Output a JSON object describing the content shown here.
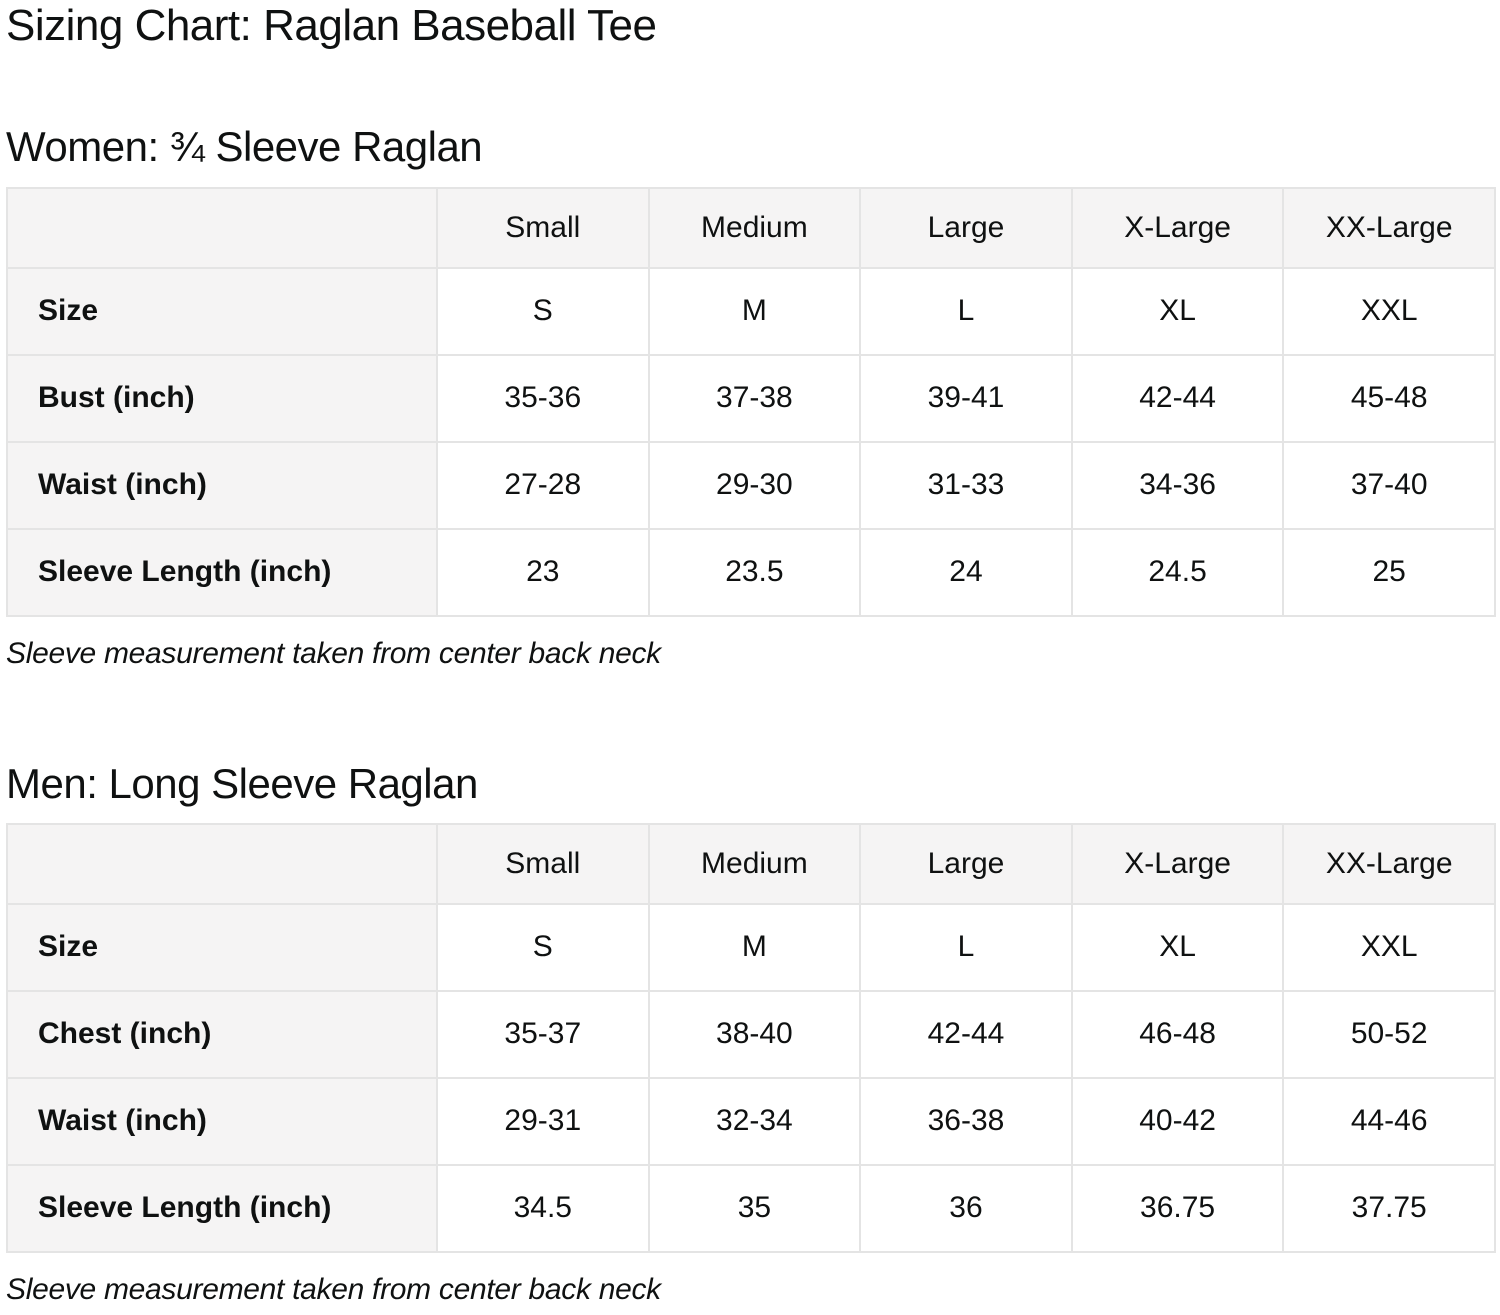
{
  "page": {
    "title": "Sizing Chart: Raglan Baseball Tee"
  },
  "colors": {
    "text": "#0f1111",
    "cell_header_bg": "#f5f4f4",
    "cell_data_bg": "#ffffff",
    "border": "#e4e4e4"
  },
  "sections": [
    {
      "id": "women",
      "title": "Women: ¾ Sleeve Raglan",
      "note": "Sleeve measurement taken from center back neck",
      "table": {
        "corner_label": "",
        "columns": [
          "Small",
          "Medium",
          "Large",
          "X-Large",
          "XX-Large"
        ],
        "rows": [
          {
            "label": "Size",
            "values": [
              "S",
              "M",
              "L",
              "XL",
              "XXL"
            ]
          },
          {
            "label": "Bust (inch)",
            "values": [
              "35-36",
              "37-38",
              "39-41",
              "42-44",
              "45-48"
            ]
          },
          {
            "label": "Waist (inch)",
            "values": [
              "27-28",
              "29-30",
              "31-33",
              "34-36",
              "37-40"
            ]
          },
          {
            "label": "Sleeve Length (inch)",
            "values": [
              "23",
              "23.5",
              "24",
              "24.5",
              "25"
            ]
          }
        ]
      }
    },
    {
      "id": "men",
      "title": "Men: Long Sleeve Raglan",
      "note": "Sleeve measurement taken from center back neck",
      "table": {
        "corner_label": "",
        "columns": [
          "Small",
          "Medium",
          "Large",
          "X-Large",
          "XX-Large"
        ],
        "rows": [
          {
            "label": "Size",
            "values": [
              "S",
              "M",
              "L",
              "XL",
              "XXL"
            ]
          },
          {
            "label": "Chest (inch)",
            "values": [
              "35-37",
              "38-40",
              "42-44",
              "46-48",
              "50-52"
            ]
          },
          {
            "label": "Waist (inch)",
            "values": [
              "29-31",
              "32-34",
              "36-38",
              "40-42",
              "44-46"
            ]
          },
          {
            "label": "Sleeve Length (inch)",
            "values": [
              "34.5",
              "35",
              "36",
              "36.75",
              "37.75"
            ]
          }
        ]
      }
    }
  ]
}
